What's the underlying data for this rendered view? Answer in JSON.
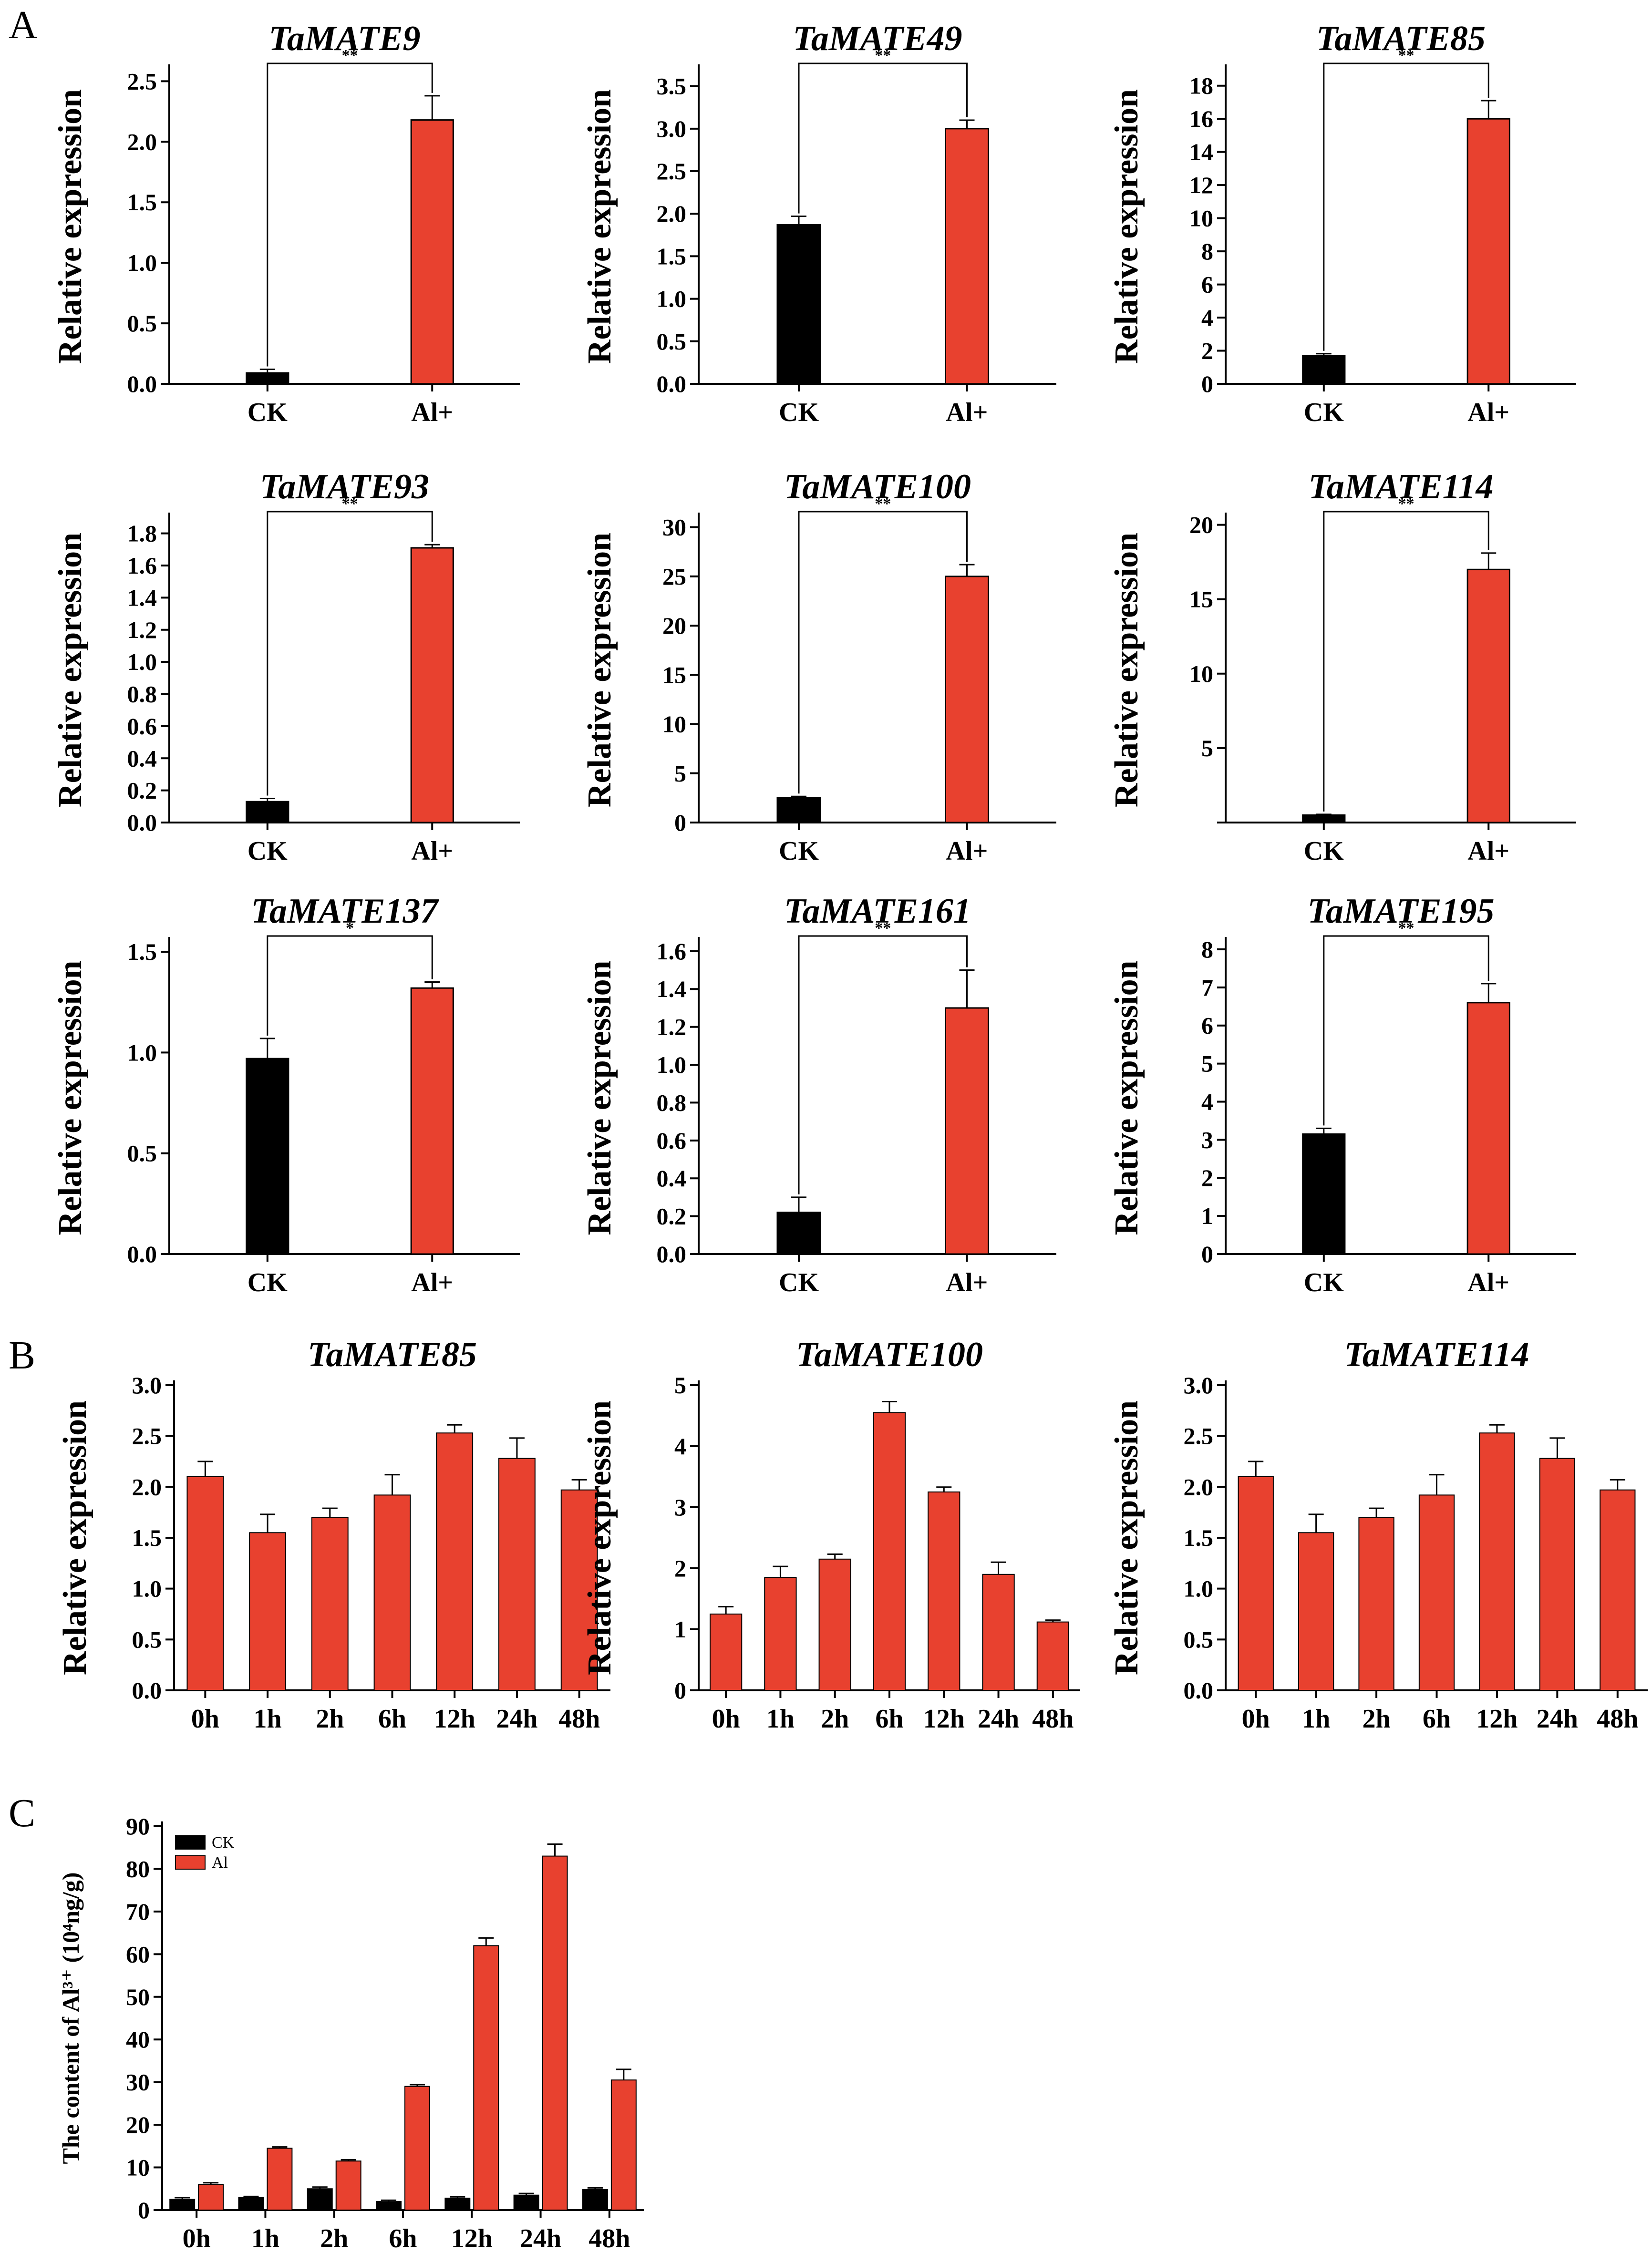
{
  "panel_labels": {
    "A": "A",
    "B": "B",
    "C": "C"
  },
  "colors": {
    "ck": "#000000",
    "al": "#e8412f",
    "axis": "#000000"
  },
  "chart_data": [
    {
      "panel": "A",
      "type": "bar",
      "title": "TaMATE9",
      "ylabel": "Relative expression",
      "categories": [
        "CK",
        "Al+"
      ],
      "values": [
        0.09,
        2.18
      ],
      "errors": [
        0.03,
        0.2
      ],
      "ylim": [
        0,
        2.6
      ],
      "yticks": [
        0,
        0.5,
        1.0,
        1.5,
        2.0,
        2.5
      ],
      "tick_labels": [
        "0.0",
        "0.5",
        "1.0",
        "1.5",
        "2.0",
        "2.5"
      ],
      "significance": "**"
    },
    {
      "panel": "A",
      "type": "bar",
      "title": "TaMATE49",
      "ylabel": "Relative expression",
      "categories": [
        "CK",
        "Al+"
      ],
      "values": [
        1.87,
        3.0
      ],
      "errors": [
        0.1,
        0.1
      ],
      "ylim": [
        0,
        3.7
      ],
      "yticks": [
        0,
        0.5,
        1.0,
        1.5,
        2.0,
        2.5,
        3.0,
        3.5
      ],
      "tick_labels": [
        "0.0",
        "0.5",
        "1.0",
        "1.5",
        "2.0",
        "2.5",
        "3.0",
        "3.5"
      ],
      "significance": "**"
    },
    {
      "panel": "A",
      "type": "bar",
      "title": "TaMATE85",
      "ylabel": "Relative expression",
      "categories": [
        "CK",
        "Al+"
      ],
      "values": [
        1.7,
        16.0
      ],
      "errors": [
        0.12,
        1.1
      ],
      "ylim": [
        0,
        19
      ],
      "yticks": [
        0,
        2,
        4,
        6,
        8,
        10,
        12,
        14,
        16,
        18
      ],
      "tick_labels": [
        "0",
        "2",
        "4",
        "6",
        "8",
        "10",
        "12",
        "14",
        "16",
        "18"
      ],
      "significance": "**"
    },
    {
      "panel": "A",
      "type": "bar",
      "title": "TaMATE93",
      "ylabel": "Relative expression",
      "categories": [
        "CK",
        "Al+"
      ],
      "values": [
        0.13,
        1.71
      ],
      "errors": [
        0.02,
        0.02
      ],
      "ylim": [
        0,
        1.9
      ],
      "yticks": [
        0,
        0.2,
        0.4,
        0.6,
        0.8,
        1.0,
        1.2,
        1.4,
        1.6,
        1.8
      ],
      "tick_labels": [
        "0.0",
        "0.2",
        "0.4",
        "0.6",
        "0.8",
        "1.0",
        "1.2",
        "1.4",
        "1.6",
        "1.8"
      ],
      "significance": "**"
    },
    {
      "panel": "A",
      "type": "bar",
      "title": "TaMATE100",
      "ylabel": "Relative expression",
      "categories": [
        "CK",
        "Al+"
      ],
      "values": [
        2.5,
        25.0
      ],
      "errors": [
        0.15,
        1.2
      ],
      "ylim": [
        0,
        31
      ],
      "yticks": [
        0,
        5,
        10,
        15,
        20,
        25,
        30
      ],
      "tick_labels": [
        "0",
        "5",
        "10",
        "15",
        "20",
        "25",
        "30"
      ],
      "significance": "**"
    },
    {
      "panel": "A",
      "type": "bar",
      "title": "TaMATE114",
      "ylabel": "Relative expression",
      "categories": [
        "CK",
        "Al+"
      ],
      "values": [
        0.5,
        17.0
      ],
      "errors": [
        0.05,
        1.1
      ],
      "ylim": [
        0,
        20.5
      ],
      "yticks": [
        0,
        5,
        10,
        15,
        20
      ],
      "tick_labels": [
        "",
        "5",
        "10",
        "15",
        "20"
      ],
      "significance": "**"
    },
    {
      "panel": "A",
      "type": "bar",
      "title": "TaMATE137",
      "ylabel": "Relative expression",
      "categories": [
        "CK",
        "Al+"
      ],
      "values": [
        0.97,
        1.32
      ],
      "errors": [
        0.1,
        0.03
      ],
      "ylim": [
        0,
        1.55
      ],
      "yticks": [
        0,
        0.5,
        1.0,
        1.5
      ],
      "tick_labels": [
        "0.0",
        "0.5",
        "1.0",
        "1.5"
      ],
      "significance": "*"
    },
    {
      "panel": "A",
      "type": "bar",
      "title": "TaMATE161",
      "ylabel": "Relative expression",
      "categories": [
        "CK",
        "Al+"
      ],
      "values": [
        0.22,
        1.3
      ],
      "errors": [
        0.08,
        0.2
      ],
      "ylim": [
        0,
        1.65
      ],
      "yticks": [
        0,
        0.2,
        0.4,
        0.6,
        0.8,
        1.0,
        1.2,
        1.4,
        1.6
      ],
      "tick_labels": [
        "0.0",
        "0.2",
        "0.4",
        "0.6",
        "0.8",
        "1.0",
        "1.2",
        "1.4",
        "1.6"
      ],
      "significance": "**"
    },
    {
      "panel": "A",
      "type": "bar",
      "title": "TaMATE195",
      "ylabel": "Relative expression",
      "categories": [
        "CK",
        "Al+"
      ],
      "values": [
        3.15,
        6.6
      ],
      "errors": [
        0.15,
        0.5
      ],
      "ylim": [
        0,
        8.2
      ],
      "yticks": [
        0,
        1,
        2,
        3,
        4,
        5,
        6,
        7,
        8
      ],
      "tick_labels": [
        "0",
        "1",
        "2",
        "3",
        "4",
        "5",
        "6",
        "7",
        "8"
      ],
      "significance": "**"
    },
    {
      "panel": "B",
      "type": "bar",
      "title": "TaMATE85",
      "ylabel": "Relative expression",
      "categories": [
        "0h",
        "1h",
        "2h",
        "6h",
        "12h",
        "24h",
        "48h"
      ],
      "values": [
        2.1,
        1.55,
        1.7,
        1.92,
        2.53,
        2.28,
        1.97
      ],
      "errors": [
        0.15,
        0.18,
        0.09,
        0.2,
        0.08,
        0.2,
        0.1
      ],
      "ylim": [
        0,
        3.0
      ],
      "yticks": [
        0,
        0.5,
        1.0,
        1.5,
        2.0,
        2.5,
        3.0
      ],
      "tick_labels": [
        "0.0",
        "0.5",
        "1.0",
        "1.5",
        "2.0",
        "2.5",
        "3.0"
      ]
    },
    {
      "panel": "B",
      "type": "bar",
      "title": "TaMATE100",
      "ylabel": "Relative expression",
      "categories": [
        "0h",
        "1h",
        "2h",
        "6h",
        "12h",
        "24h",
        "48h"
      ],
      "values": [
        1.25,
        1.85,
        2.15,
        4.55,
        3.25,
        1.9,
        1.12
      ],
      "errors": [
        0.12,
        0.18,
        0.08,
        0.18,
        0.08,
        0.2,
        0.03
      ],
      "ylim": [
        0,
        5
      ],
      "yticks": [
        0,
        1,
        2,
        3,
        4,
        5
      ],
      "tick_labels": [
        "0",
        "1",
        "2",
        "3",
        "4",
        "5"
      ]
    },
    {
      "panel": "B",
      "type": "bar",
      "title": "TaMATE114",
      "ylabel": "Relative expression",
      "categories": [
        "0h",
        "1h",
        "2h",
        "6h",
        "12h",
        "24h",
        "48h"
      ],
      "values": [
        2.1,
        1.55,
        1.7,
        1.92,
        2.53,
        2.28,
        1.97
      ],
      "errors": [
        0.15,
        0.18,
        0.09,
        0.2,
        0.08,
        0.2,
        0.1
      ],
      "ylim": [
        0,
        3.0
      ],
      "yticks": [
        0,
        0.5,
        1.0,
        1.5,
        2.0,
        2.5,
        3.0
      ],
      "tick_labels": [
        "0.0",
        "0.5",
        "1.0",
        "1.5",
        "2.0",
        "2.5",
        "3.0"
      ]
    },
    {
      "panel": "C",
      "type": "bar",
      "title": "",
      "ylabel": "The content of Al³⁺ (10⁴ng/g)",
      "categories": [
        "0h",
        "1h",
        "2h",
        "6h",
        "12h",
        "24h",
        "48h"
      ],
      "series": [
        {
          "name": "CK",
          "values": [
            2.5,
            3.0,
            5.0,
            2.0,
            2.8,
            3.5,
            4.8
          ],
          "errors": [
            0.4,
            0.2,
            0.4,
            0.3,
            0.3,
            0.4,
            0.4
          ]
        },
        {
          "name": "Al",
          "values": [
            6.0,
            14.5,
            11.5,
            29.0,
            62.0,
            83.0,
            30.5
          ],
          "errors": [
            0.4,
            0.3,
            0.3,
            0.4,
            1.8,
            2.8,
            2.5
          ]
        }
      ],
      "ylim": [
        0,
        90
      ],
      "yticks": [
        0,
        10,
        20,
        30,
        40,
        50,
        60,
        70,
        80,
        90
      ],
      "tick_labels": [
        "0",
        "10",
        "20",
        "30",
        "40",
        "50",
        "60",
        "70",
        "80",
        "90"
      ],
      "legend": [
        "CK",
        "Al"
      ]
    }
  ]
}
